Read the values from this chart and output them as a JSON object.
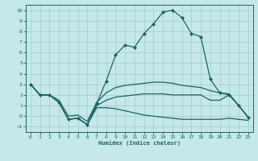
{
  "xlabel": "Humidex (Indice chaleur)",
  "background_color": "#c5e8e8",
  "grid_color": "#aad4d4",
  "line_color": "#1a6464",
  "xlim": [
    -0.5,
    23.5
  ],
  "ylim": [
    -1.5,
    10.5
  ],
  "xticks": [
    0,
    1,
    2,
    3,
    4,
    5,
    6,
    7,
    8,
    9,
    10,
    11,
    12,
    13,
    14,
    15,
    16,
    17,
    18,
    19,
    20,
    21,
    22,
    23
  ],
  "yticks": [
    -1,
    0,
    1,
    2,
    3,
    4,
    5,
    6,
    7,
    8,
    9,
    10
  ],
  "line_main_x": [
    0,
    1,
    2,
    3,
    4,
    5,
    6,
    7,
    8,
    9,
    10,
    11,
    12,
    13,
    14,
    15,
    16,
    17,
    18,
    19,
    20,
    21,
    22,
    23
  ],
  "line_main_y": [
    3.0,
    2.0,
    2.0,
    1.3,
    -0.3,
    -0.2,
    -0.8,
    1.2,
    3.3,
    5.8,
    6.7,
    6.5,
    7.8,
    8.7,
    9.8,
    10.0,
    9.3,
    7.8,
    7.5,
    3.5,
    2.2,
    2.0,
    1.0,
    -0.1
  ],
  "line_upper_x": [
    0,
    1,
    2,
    3,
    4,
    5,
    6,
    7,
    8,
    9,
    10,
    11,
    12,
    13,
    14,
    15,
    16,
    17,
    18,
    19,
    20,
    21,
    22,
    23
  ],
  "line_upper_y": [
    3.0,
    2.0,
    2.0,
    1.5,
    0.0,
    0.1,
    -0.5,
    1.3,
    2.2,
    2.7,
    2.9,
    3.0,
    3.1,
    3.2,
    3.2,
    3.1,
    2.9,
    2.8,
    2.7,
    2.4,
    2.2,
    2.1,
    1.0,
    -0.1
  ],
  "line_mid_x": [
    0,
    1,
    2,
    3,
    4,
    5,
    6,
    7,
    8,
    9,
    10,
    11,
    12,
    13,
    14,
    15,
    16,
    17,
    18,
    19,
    20,
    21,
    22,
    23
  ],
  "line_mid_y": [
    3.0,
    2.0,
    2.0,
    1.3,
    -0.3,
    -0.2,
    -0.8,
    1.0,
    1.5,
    1.8,
    1.9,
    2.0,
    2.1,
    2.1,
    2.1,
    2.0,
    2.0,
    2.0,
    2.0,
    1.5,
    1.5,
    2.0,
    1.0,
    -0.1
  ],
  "line_bottom_x": [
    0,
    1,
    2,
    3,
    4,
    5,
    6,
    7,
    8,
    9,
    10,
    11,
    12,
    13,
    14,
    15,
    16,
    17,
    18,
    19,
    20,
    21,
    22,
    23
  ],
  "line_bottom_y": [
    3.0,
    2.0,
    2.0,
    1.3,
    -0.3,
    -0.2,
    -0.8,
    0.8,
    0.8,
    0.7,
    0.5,
    0.3,
    0.1,
    0.0,
    -0.1,
    -0.2,
    -0.3,
    -0.3,
    -0.3,
    -0.3,
    -0.3,
    -0.2,
    -0.3,
    -0.4
  ]
}
